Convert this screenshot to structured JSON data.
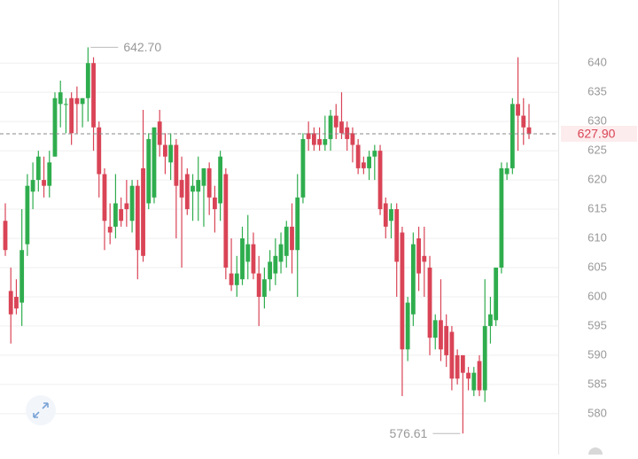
{
  "chart_data": {
    "type": "candlestick",
    "ylim": [
      573,
      650.8
    ],
    "yticks": [
      580,
      585,
      590,
      595,
      600,
      605,
      610,
      615,
      620,
      625,
      630,
      635,
      640
    ],
    "grid": true,
    "up_color": "#2fad4e",
    "down_color": "#d94456",
    "open": [
      613,
      601,
      600,
      599,
      609,
      618,
      620,
      620,
      619,
      624,
      633,
      633,
      634,
      634,
      633,
      634,
      640,
      629,
      621,
      612,
      612,
      615,
      616,
      613,
      619,
      622,
      616,
      617,
      630,
      626,
      623,
      626,
      620,
      621,
      618,
      618,
      619,
      622,
      617,
      616,
      621,
      604,
      602,
      603,
      606,
      609,
      604,
      600,
      603,
      604,
      606,
      607,
      612,
      608,
      617,
      628,
      628,
      627,
      626,
      627,
      631,
      630,
      629,
      628,
      626,
      623,
      622,
      624,
      625,
      616,
      613,
      615,
      611,
      591,
      597,
      610,
      607,
      605,
      593,
      596,
      595,
      594,
      590,
      590,
      587,
      584,
      589,
      584,
      595,
      596,
      605,
      621,
      622,
      633,
      631,
      629
    ],
    "high": [
      616,
      605,
      603,
      615,
      621,
      623,
      625,
      624,
      625,
      635,
      637,
      634,
      635,
      636,
      634,
      642.7,
      641,
      630,
      622,
      616,
      621,
      617,
      620,
      620,
      620,
      632,
      628,
      629,
      632,
      628,
      628,
      627,
      624,
      622,
      621,
      624,
      622,
      623,
      619,
      625,
      622,
      610,
      607,
      612,
      614,
      611,
      607,
      605,
      608,
      610,
      611,
      613,
      616,
      621,
      628,
      630,
      629,
      629,
      631,
      632,
      633,
      635,
      630,
      629,
      627,
      624,
      625,
      626,
      626,
      617,
      616,
      616,
      612,
      600,
      611,
      612,
      612,
      607,
      597,
      603,
      597,
      595,
      591,
      590,
      588,
      588,
      590,
      603,
      600,
      605,
      623,
      623,
      634,
      641,
      634,
      633
    ],
    "low": [
      607,
      592,
      597,
      595,
      607,
      615,
      618,
      617,
      617,
      624,
      629,
      628,
      626,
      628,
      629,
      630,
      625,
      617,
      608,
      609,
      610,
      612,
      612,
      611,
      603,
      606,
      615,
      616,
      624,
      621,
      620,
      610,
      605,
      614,
      613,
      613,
      612,
      614,
      611,
      613,
      603,
      601,
      600,
      602,
      603,
      603,
      595,
      598,
      601,
      602,
      604,
      605,
      604,
      600,
      616,
      625,
      625,
      625,
      625,
      625,
      627,
      627,
      625,
      623,
      621,
      621,
      620,
      620,
      614,
      610,
      610,
      600,
      583,
      589,
      595,
      601,
      600,
      590,
      591,
      589,
      588,
      584,
      585,
      576.61,
      584,
      583,
      583,
      582,
      592,
      595,
      604,
      620,
      621,
      625,
      626,
      627
    ],
    "close": [
      608,
      597,
      598,
      608,
      619,
      620,
      624,
      619,
      623,
      634,
      635,
      633,
      628,
      633,
      634,
      640,
      629,
      621,
      613,
      611,
      616,
      613,
      615,
      619,
      608,
      607,
      627,
      629,
      626,
      624,
      626,
      619,
      617,
      615,
      619,
      620,
      622,
      617,
      615,
      624,
      605,
      602,
      604,
      610,
      609,
      604,
      600,
      603,
      606,
      607,
      609,
      612,
      608,
      617,
      627,
      627,
      626,
      626,
      627,
      631,
      629,
      628,
      627,
      626,
      622,
      622,
      624,
      625,
      615,
      612,
      615,
      606,
      591,
      599,
      609,
      604,
      606,
      593,
      596,
      591,
      590,
      586,
      586,
      587,
      586,
      587,
      584,
      595,
      597,
      605,
      622,
      622,
      633,
      631,
      629,
      627.9
    ],
    "last_price": {
      "value": 627.9,
      "label": "627.90"
    },
    "annotations": [
      {
        "value": 642.7,
        "label": "642.70"
      },
      {
        "value": 576.61,
        "label": "576.61"
      }
    ]
  }
}
